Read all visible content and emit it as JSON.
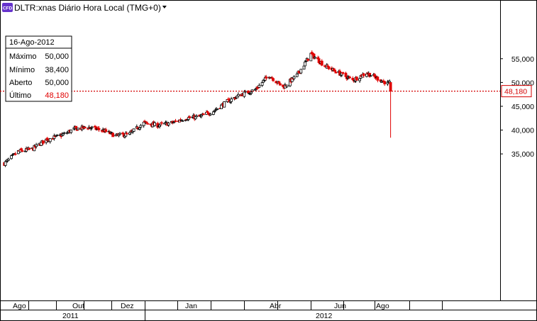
{
  "header": {
    "badge": "CFD",
    "title": "DLTR:xnas Diário Hora Local (TMG+0)",
    "dropdown_icon": "caret-down-icon"
  },
  "info_box": {
    "date": "16-Ago-2012",
    "rows": [
      {
        "label": "Máximo",
        "value": "50,000"
      },
      {
        "label": "Mínimo",
        "value": "38,400"
      },
      {
        "label": "Aberto",
        "value": "50,000"
      },
      {
        "label": "Último",
        "value": "48,180"
      }
    ]
  },
  "last_price_label": "48,180",
  "colors": {
    "up": "#000000",
    "down": "#e00000",
    "last_line": "#d40000",
    "badge": "#6633cc"
  },
  "chart_data": {
    "type": "candlestick",
    "title": "DLTR:xnas Diário Hora Local (TMG+0)",
    "ylim": [
      32000,
      57000
    ],
    "y_ticks": [
      "35,000",
      "40,000",
      "45,000",
      "50,000",
      "55,000"
    ],
    "y_tick_values": [
      35000,
      40000,
      45000,
      50000,
      55000
    ],
    "x_month_labels": [
      "Ago",
      "Out",
      "Dez",
      "Jan",
      "Abr",
      "Jun",
      "Ago"
    ],
    "x_year_labels": [
      "2011",
      "2012"
    ],
    "last_price": 48180,
    "last_bar": {
      "date": "16-Ago-2012",
      "open": 50000,
      "high": 50000,
      "low": 38400,
      "close": 48180
    },
    "close_path": [
      [
        "2011-07-25",
        33000
      ],
      [
        "2011-08-08",
        35500
      ],
      [
        "2011-08-22",
        36000
      ],
      [
        "2011-09-05",
        38000
      ],
      [
        "2011-09-19",
        38800
      ],
      [
        "2011-10-03",
        40200
      ],
      [
        "2011-10-17",
        40600
      ],
      [
        "2011-10-31",
        40000
      ],
      [
        "2011-11-14",
        38800
      ],
      [
        "2011-11-28",
        39200
      ],
      [
        "2011-12-12",
        41500
      ],
      [
        "2011-12-26",
        41000
      ],
      [
        "2012-01-09",
        41500
      ],
      [
        "2012-01-23",
        42500
      ],
      [
        "2012-02-06",
        42800
      ],
      [
        "2012-02-20",
        44000
      ],
      [
        "2012-03-05",
        46000
      ],
      [
        "2012-03-19",
        47500
      ],
      [
        "2012-04-02",
        48500
      ],
      [
        "2012-04-16",
        51500
      ],
      [
        "2012-04-30",
        49000
      ],
      [
        "2012-05-14",
        51500
      ],
      [
        "2012-05-28",
        56000
      ],
      [
        "2012-06-11",
        53500
      ],
      [
        "2012-06-25",
        52000
      ],
      [
        "2012-07-09",
        50500
      ],
      [
        "2012-07-23",
        52000
      ],
      [
        "2012-08-06",
        50500
      ],
      [
        "2012-08-13",
        49800
      ]
    ]
  }
}
